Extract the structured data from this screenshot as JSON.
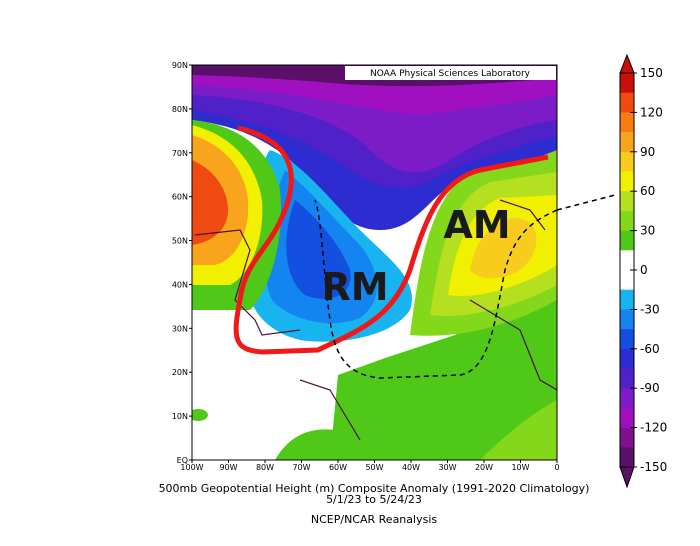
{
  "map": {
    "title": "500mb Geopotential Height (m) Composite Anomaly (1991-2020 Climatology)",
    "date_range": "5/1/23  to 5/24/23",
    "source": "NCEP/NCAR Reanalysis",
    "credit": "NOAA Physical Sciences Laboratory",
    "lat_labels": [
      "90N",
      "80N",
      "70N",
      "60N",
      "50N",
      "40N",
      "30N",
      "20N",
      "10N",
      "EQ"
    ],
    "lon_labels": [
      "100W",
      "90W",
      "80W",
      "70W",
      "60W",
      "50W",
      "40W",
      "30W",
      "20W",
      "10W",
      "0"
    ],
    "annotations": [
      "RM",
      "AM"
    ],
    "colorbar": {
      "ticks": [
        150,
        120,
        90,
        60,
        30,
        0,
        -30,
        -60,
        -90,
        -120,
        -150
      ],
      "colors": [
        "#c80f0a",
        "#f04a10",
        "#f87c14",
        "#f8a41c",
        "#f8cc1c",
        "#f0f000",
        "#b4e020",
        "#84d81c",
        "#50c818",
        "#ffffff",
        "#ffffff",
        "#18b4f0",
        "#1484f0",
        "#1450e0",
        "#2c2cd0",
        "#5020c8",
        "#7c1cc8",
        "#a010c0",
        "#801090",
        "#5a1068"
      ]
    }
  }
}
